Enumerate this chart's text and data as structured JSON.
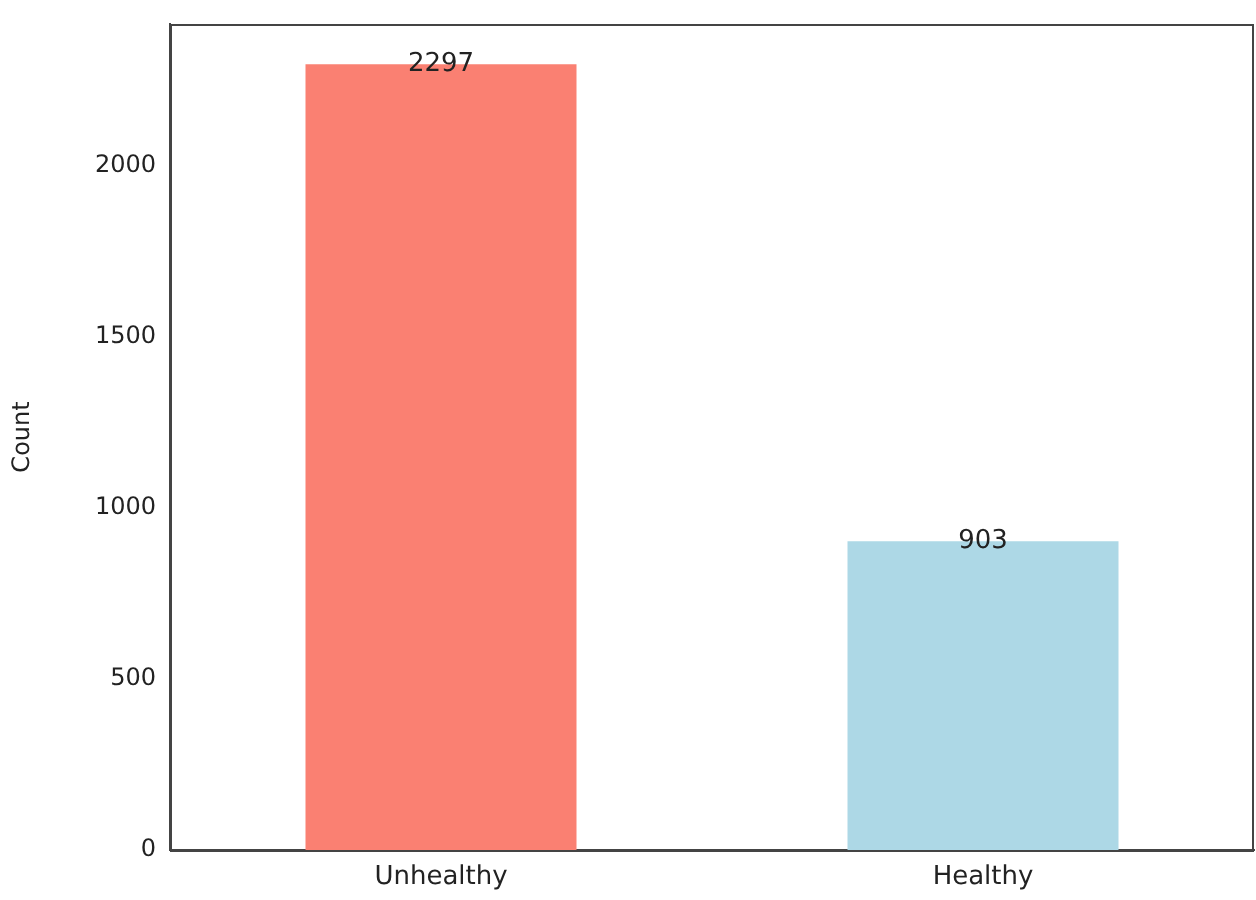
{
  "chart_data": {
    "type": "bar",
    "ylabel": "Count",
    "categories": [
      "Unhealthy",
      "Healthy"
    ],
    "values": [
      2297,
      903
    ],
    "colors": [
      "#fa8072",
      "#add8e6"
    ],
    "ylim": [
      0,
      2415
    ],
    "yticks": [
      0,
      500,
      1000,
      1500,
      2000
    ],
    "data_labels": true,
    "grid": false,
    "legend": false
  }
}
